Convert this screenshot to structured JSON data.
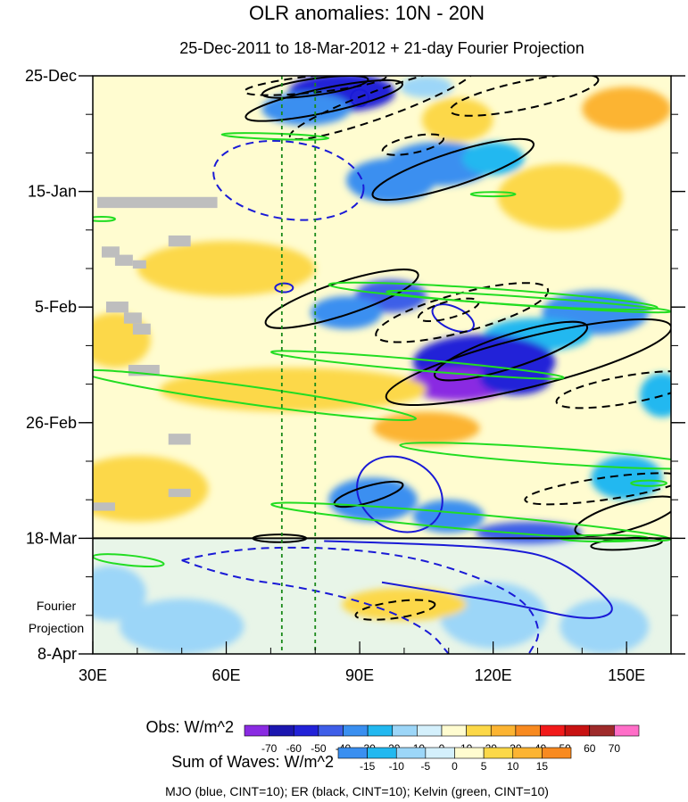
{
  "chart_data": {
    "type": "heatmap",
    "title": "OLR anomalies: 10N - 20N",
    "subtitle": "25-Dec-2011 to 18-Mar-2012 + 21-day Fourier Projection",
    "x_axis": {
      "range": [
        30,
        160
      ],
      "ticks": [
        {
          "value": 30,
          "label": "30E"
        },
        {
          "value": 60,
          "label": "60E"
        },
        {
          "value": 90,
          "label": "90E"
        },
        {
          "value": 120,
          "label": "120E"
        },
        {
          "value": 150,
          "label": "150E"
        }
      ]
    },
    "y_axis": {
      "range_days": [
        0,
        105
      ],
      "ticks": [
        {
          "day": 0,
          "label": "25-Dec"
        },
        {
          "day": 21,
          "label": "15-Jan"
        },
        {
          "day": 42,
          "label": "5-Feb"
        },
        {
          "day": 63,
          "label": "26-Feb"
        },
        {
          "day": 84,
          "label": "18-Mar"
        },
        {
          "day": 105,
          "label": "8-Apr"
        }
      ],
      "projection_label_line1": "Fourier",
      "projection_label_line2": "Projection"
    },
    "projection_start_day": 84,
    "reference_lines_lon": [
      72.5,
      80
    ],
    "obs_colorbar": {
      "label": "Obs: W/m^2",
      "levels": [
        "-70",
        "-60",
        "-50",
        "-40",
        "-30",
        "-20",
        "-10",
        "0",
        "10",
        "20",
        "30",
        "40",
        "50",
        "60",
        "70"
      ],
      "colors": [
        "#8a2be2",
        "#1c16b0",
        "#2222d8",
        "#3e5ee8",
        "#3a8ff0",
        "#22b8f0",
        "#9cd6f8",
        "#d4f0fc",
        "#fffcd0",
        "#fcd848",
        "#fcb432",
        "#f88a20",
        "#f21a1a",
        "#c81212",
        "#9e2a2a",
        "#ff6ec8"
      ]
    },
    "waves_colorbar": {
      "label": "Sum of Waves: W/m^2",
      "levels": [
        "-15",
        "-10",
        "-5",
        "0",
        "5",
        "10",
        "15"
      ],
      "colors": [
        "#3a8ff0",
        "#22b8f0",
        "#9cd6f8",
        "#d4f0fc",
        "#fffcd0",
        "#fcd848",
        "#fcb432",
        "#f88a20"
      ]
    },
    "footer": "MJO (blue, CINT=10); ER (black, CINT=10); Kelvin (green, CINT=10)",
    "series": [
      {
        "name": "MJO",
        "color": "#1a1ad6"
      },
      {
        "name": "ER",
        "color": "#000000"
      },
      {
        "name": "Kelvin",
        "color": "#22dd22"
      }
    ],
    "obs_patches": [
      {
        "lon": 88,
        "day": 2.5,
        "rlon": 7,
        "rday": 2.5,
        "level": 0
      },
      {
        "lon": 86,
        "day": 3,
        "rlon": 12,
        "rday": 3.5,
        "level": 2
      },
      {
        "lon": 78,
        "day": 6,
        "rlon": 10,
        "rday": 3,
        "level": 4
      },
      {
        "lon": 105,
        "day": 2,
        "rlon": 6,
        "rday": 2,
        "level": 6
      },
      {
        "lon": 108,
        "day": 16,
        "rlon": 12,
        "rday": 4,
        "level": 4
      },
      {
        "lon": 97,
        "day": 19,
        "rlon": 10,
        "rday": 4,
        "level": 4
      },
      {
        "lon": 120,
        "day": 15,
        "rlon": 7,
        "rday": 3,
        "level": 5
      },
      {
        "lon": 97,
        "day": 40,
        "rlon": 8,
        "rday": 3,
        "level": 3
      },
      {
        "lon": 87,
        "day": 43,
        "rlon": 8,
        "rday": 3,
        "level": 4
      },
      {
        "lon": 143,
        "day": 43,
        "rlon": 12,
        "rday": 4,
        "level": 4
      },
      {
        "lon": 130,
        "day": 47,
        "rlon": 12,
        "rday": 3,
        "level": 5
      },
      {
        "lon": 118,
        "day": 52,
        "rlon": 16,
        "rday": 5,
        "level": 2
      },
      {
        "lon": 112,
        "day": 56,
        "rlon": 12,
        "rday": 3,
        "level": 0
      },
      {
        "lon": 125,
        "day": 55,
        "rlon": 8,
        "rday": 3,
        "level": 2
      },
      {
        "lon": 93,
        "day": 77,
        "rlon": 10,
        "rday": 4,
        "level": 4
      },
      {
        "lon": 110,
        "day": 80,
        "rlon": 8,
        "rday": 3,
        "level": 4
      },
      {
        "lon": 128,
        "day": 83,
        "rlon": 12,
        "rday": 2,
        "level": 3
      },
      {
        "lon": 150,
        "day": 73,
        "rlon": 8,
        "rday": 4,
        "level": 5
      },
      {
        "lon": 158,
        "day": 58,
        "rlon": 5,
        "rday": 4,
        "level": 5
      },
      {
        "lon": 34,
        "day": 94,
        "rlon": 8,
        "rday": 5,
        "level": 6
      },
      {
        "lon": 50,
        "day": 100,
        "rlon": 14,
        "rday": 5,
        "level": 6
      },
      {
        "lon": 120,
        "day": 98,
        "rlon": 12,
        "rday": 6,
        "level": 6
      },
      {
        "lon": 145,
        "day": 100,
        "rlon": 10,
        "rday": 5,
        "level": 6
      },
      {
        "lon": 100,
        "day": 96,
        "rlon": 14,
        "rday": 3,
        "level": 9
      },
      {
        "lon": 112,
        "day": 8,
        "rlon": 8,
        "rday": 4,
        "level": 9
      },
      {
        "lon": 135,
        "day": 22,
        "rlon": 14,
        "rday": 6,
        "level": 9
      },
      {
        "lon": 60,
        "day": 35,
        "rlon": 20,
        "rday": 5,
        "level": 9
      },
      {
        "lon": 75,
        "day": 57,
        "rlon": 30,
        "rday": 4,
        "level": 9
      },
      {
        "lon": 40,
        "day": 75,
        "rlon": 16,
        "rday": 6,
        "level": 9
      },
      {
        "lon": 150,
        "day": 6,
        "rlon": 10,
        "rday": 4,
        "level": 10
      },
      {
        "lon": 105,
        "day": 64,
        "rlon": 12,
        "rday": 3,
        "level": 10
      },
      {
        "lon": 35,
        "day": 48,
        "rlon": 8,
        "rday": 5,
        "level": 9
      }
    ],
    "missing_cells": [
      {
        "lon": 31,
        "day": 22,
        "w": 27,
        "h": 2
      },
      {
        "lon": 47,
        "day": 29,
        "w": 5,
        "h": 2
      },
      {
        "lon": 32,
        "day": 31,
        "w": 4,
        "h": 2
      },
      {
        "lon": 35,
        "day": 32.5,
        "w": 4,
        "h": 2
      },
      {
        "lon": 39,
        "day": 33.5,
        "w": 3,
        "h": 1.5
      },
      {
        "lon": 33,
        "day": 41,
        "w": 5,
        "h": 2
      },
      {
        "lon": 37,
        "day": 43,
        "w": 4,
        "h": 2
      },
      {
        "lon": 39,
        "day": 45,
        "w": 4,
        "h": 2
      },
      {
        "lon": 38,
        "day": 52.5,
        "w": 7,
        "h": 2
      },
      {
        "lon": 47,
        "day": 65,
        "w": 5,
        "h": 2
      },
      {
        "lon": 47,
        "day": 75,
        "w": 5,
        "h": 1.5
      },
      {
        "lon": 30,
        "day": 77.5,
        "w": 5,
        "h": 1.5
      }
    ],
    "contours": [
      {
        "series": "MJO",
        "dashed": false,
        "type": "ellipse",
        "lon": 90,
        "day": 4,
        "rlon": 2,
        "rday": 1.5,
        "rot": 0
      },
      {
        "series": "MJO",
        "dashed": false,
        "type": "ellipse",
        "lon": 73,
        "day": 38.5,
        "rlon": 2,
        "rday": 0.8,
        "rot": 0
      },
      {
        "series": "MJO",
        "dashed": false,
        "type": "ellipse",
        "lon": 111,
        "day": 44,
        "rlon": 5,
        "rday": 2,
        "rot": 25
      },
      {
        "series": "MJO",
        "dashed": false,
        "type": "ellipse",
        "lon": 99,
        "day": 76,
        "rlon": 10,
        "rday": 6.5,
        "rot": 28
      },
      {
        "series": "MJO",
        "dashed": true,
        "type": "ellipse",
        "lon": 74,
        "day": 19,
        "rlon": 17,
        "rday": 7,
        "rot": 8
      },
      {
        "series": "MJO",
        "dashed": false,
        "type": "path",
        "points": [
          [
            82,
            84.5
          ],
          [
            105,
            85
          ],
          [
            125,
            86
          ],
          [
            135,
            88
          ],
          [
            144,
            93.5
          ],
          [
            148,
            97.5
          ],
          [
            141,
            99
          ],
          [
            125,
            96
          ],
          [
            110,
            94
          ],
          [
            95,
            92
          ]
        ]
      },
      {
        "series": "MJO",
        "dashed": true,
        "type": "path",
        "points": [
          [
            50,
            88
          ],
          [
            60,
            86
          ],
          [
            80,
            85.5
          ],
          [
            100,
            87
          ],
          [
            115,
            90.5
          ],
          [
            127,
            95
          ],
          [
            131,
            101
          ],
          [
            128,
            105
          ]
        ]
      },
      {
        "series": "MJO",
        "dashed": true,
        "type": "path",
        "points": [
          [
            50,
            88
          ],
          [
            60,
            91
          ],
          [
            78,
            93
          ],
          [
            95,
            96.5
          ],
          [
            106,
            101
          ],
          [
            110,
            105
          ]
        ]
      },
      {
        "series": "ER",
        "dashed": false,
        "type": "ellipse",
        "lon": 82,
        "day": 4.5,
        "rlon": 18,
        "rday": 2.2,
        "rot": -12
      },
      {
        "series": "ER",
        "dashed": false,
        "type": "ellipse",
        "lon": 80,
        "day": 2,
        "rlon": 12,
        "rday": 1.5,
        "rot": -8
      },
      {
        "series": "ER",
        "dashed": true,
        "type": "ellipse",
        "lon": 80,
        "day": 1.5,
        "rlon": 16,
        "rday": 1.5,
        "rot": -6
      },
      {
        "series": "ER",
        "dashed": true,
        "type": "ellipse",
        "lon": 95,
        "day": 5,
        "rlon": 22,
        "rday": 2.5,
        "rot": -20
      },
      {
        "series": "ER",
        "dashed": true,
        "type": "ellipse",
        "lon": 102,
        "day": 12.5,
        "rlon": 7,
        "rday": 1.5,
        "rot": -12
      },
      {
        "series": "ER",
        "dashed": false,
        "type": "ellipse",
        "lon": 111,
        "day": 17,
        "rlon": 19,
        "rday": 3,
        "rot": -18
      },
      {
        "series": "ER",
        "dashed": true,
        "type": "ellipse",
        "lon": 127,
        "day": 3.5,
        "rlon": 17,
        "rday": 2.5,
        "rot": -12
      },
      {
        "series": "ER",
        "dashed": false,
        "type": "ellipse",
        "lon": 86,
        "day": 40.5,
        "rlon": 18,
        "rday": 3,
        "rot": -18
      },
      {
        "series": "ER",
        "dashed": true,
        "type": "ellipse",
        "lon": 113,
        "day": 43,
        "rlon": 20,
        "rday": 3.5,
        "rot": -15
      },
      {
        "series": "ER",
        "dashed": true,
        "type": "ellipse",
        "lon": 110,
        "day": 42.5,
        "rlon": 7,
        "rday": 1.5,
        "rot": -15
      },
      {
        "series": "ER",
        "dashed": false,
        "type": "ellipse",
        "lon": 124,
        "day": 50,
        "rlon": 18,
        "rday": 3,
        "rot": -18
      },
      {
        "series": "ER",
        "dashed": false,
        "type": "ellipse",
        "lon": 128,
        "day": 52,
        "rlon": 33,
        "rday": 4.5,
        "rot": -14
      },
      {
        "series": "ER",
        "dashed": true,
        "type": "ellipse",
        "lon": 150,
        "day": 57,
        "rlon": 16,
        "rday": 2.5,
        "rot": -10
      },
      {
        "series": "ER",
        "dashed": false,
        "type": "ellipse",
        "lon": 92,
        "day": 76,
        "rlon": 8,
        "rday": 1.5,
        "rot": -16
      },
      {
        "series": "ER",
        "dashed": true,
        "type": "ellipse",
        "lon": 145,
        "day": 75,
        "rlon": 18,
        "rday": 2,
        "rot": -8
      },
      {
        "series": "ER",
        "dashed": false,
        "type": "ellipse",
        "lon": 150,
        "day": 80,
        "rlon": 12,
        "rday": 2.5,
        "rot": -16
      },
      {
        "series": "ER",
        "dashed": false,
        "type": "ellipse",
        "lon": 150,
        "day": 85,
        "rlon": 8,
        "rday": 1,
        "rot": -4
      },
      {
        "series": "ER",
        "dashed": true,
        "type": "ellipse",
        "lon": 98,
        "day": 97,
        "rlon": 9,
        "rday": 1.5,
        "rot": -8
      },
      {
        "series": "ER",
        "dashed": false,
        "type": "ellipse",
        "lon": 72,
        "day": 84,
        "rlon": 6,
        "rday": 0.7,
        "rot": 0
      },
      {
        "series": "Kelvin",
        "dashed": false,
        "type": "ellipse",
        "lon": 71,
        "day": 11,
        "rlon": 12,
        "rday": 0.5,
        "rot": 2
      },
      {
        "series": "Kelvin",
        "dashed": false,
        "type": "ellipse",
        "lon": 120,
        "day": 21.5,
        "rlon": 5,
        "rday": 0.4,
        "rot": 0
      },
      {
        "series": "Kelvin",
        "dashed": false,
        "type": "ellipse",
        "lon": 32,
        "day": 26,
        "rlon": 3,
        "rday": 0.4,
        "rot": 0
      },
      {
        "series": "Kelvin",
        "dashed": false,
        "type": "ellipse",
        "lon": 120,
        "day": 40,
        "rlon": 37,
        "rday": 1.3,
        "rot": 4
      },
      {
        "series": "Kelvin",
        "dashed": false,
        "type": "ellipse",
        "lon": 128,
        "day": 41,
        "rlon": 32,
        "rday": 0.8,
        "rot": 4
      },
      {
        "series": "Kelvin",
        "dashed": false,
        "type": "ellipse",
        "lon": 103,
        "day": 52.5,
        "rlon": 33,
        "rday": 1,
        "rot": 5
      },
      {
        "series": "Kelvin",
        "dashed": false,
        "type": "ellipse",
        "lon": 65,
        "day": 58,
        "rlon": 38,
        "rday": 1.6,
        "rot": 8
      },
      {
        "series": "Kelvin",
        "dashed": false,
        "type": "ellipse",
        "lon": 133,
        "day": 69,
        "rlon": 34,
        "rday": 1.4,
        "rot": 4
      },
      {
        "series": "Kelvin",
        "dashed": false,
        "type": "ellipse",
        "lon": 115,
        "day": 81,
        "rlon": 45,
        "rday": 1.4,
        "rot": 5
      },
      {
        "series": "Kelvin",
        "dashed": false,
        "type": "ellipse",
        "lon": 145,
        "day": 84,
        "rlon": 10,
        "rday": 0.6,
        "rot": 0
      },
      {
        "series": "Kelvin",
        "dashed": false,
        "type": "ellipse",
        "lon": 38,
        "day": 88,
        "rlon": 8,
        "rday": 0.9,
        "rot": 6
      },
      {
        "series": "Kelvin",
        "dashed": false,
        "type": "ellipse",
        "lon": 155,
        "day": 74,
        "rlon": 4,
        "rday": 0.5,
        "rot": 0
      }
    ]
  }
}
